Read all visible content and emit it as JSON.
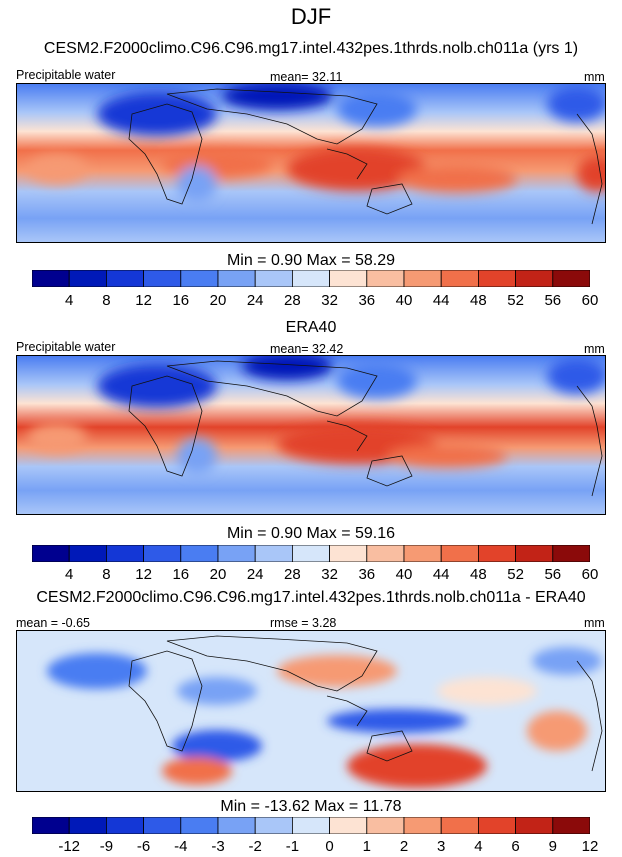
{
  "season": "DJF",
  "case_title": "CESM2.F2000climo.C96.C96.mg17.intel.432pes.1thrds.nolb.ch011a (yrs 1)",
  "panels": [
    {
      "id": "model",
      "left_label": "Precipitable water",
      "center_label": "mean=  32.11",
      "right_label": "mm",
      "minmax": "Min =   0.90 Max =  58.29",
      "colormap": "sequential"
    },
    {
      "id": "obs",
      "heading": "ERA40",
      "left_label": "Precipitable water",
      "center_label": "mean=  32.42",
      "right_label": "mm",
      "minmax": "Min =   0.90 Max =  59.16",
      "colormap": "sequential"
    },
    {
      "id": "diff",
      "heading": "CESM2.F2000climo.C96.C96.mg17.intel.432pes.1thrds.nolb.ch011a - ERA40",
      "left_label": "mean =  -0.65",
      "center_label": "rmse =   3.28",
      "right_label": "mm",
      "minmax": "Min = -13.62 Max =  11.78",
      "colormap": "diverging"
    }
  ],
  "colorbars": {
    "sequential": {
      "colors": [
        "#00008f",
        "#0019b8",
        "#1437d6",
        "#2e5ae8",
        "#4a7df2",
        "#78a2f5",
        "#a9c6f8",
        "#d6e6fa",
        "#fde3d3",
        "#f9bea1",
        "#f69a73",
        "#f1704a",
        "#e2432a",
        "#c22317",
        "#8b0a0a"
      ],
      "ticks": [
        "4",
        "8",
        "12",
        "16",
        "20",
        "24",
        "28",
        "32",
        "36",
        "40",
        "44",
        "48",
        "52",
        "56",
        "60"
      ]
    },
    "diverging": {
      "colors": [
        "#00008f",
        "#0019b8",
        "#1437d6",
        "#2e5ae8",
        "#4a7df2",
        "#78a2f5",
        "#a9c6f8",
        "#d6e6fa",
        "#fde3d3",
        "#f9bea1",
        "#f69a73",
        "#f1704a",
        "#e2432a",
        "#c22317",
        "#8b0a0a"
      ],
      "ticks": [
        "-12",
        "-9",
        "-6",
        "-4",
        "-3",
        "-2",
        "-1",
        "0",
        "1",
        "2",
        "3",
        "4",
        "6",
        "9",
        "12"
      ]
    }
  }
}
